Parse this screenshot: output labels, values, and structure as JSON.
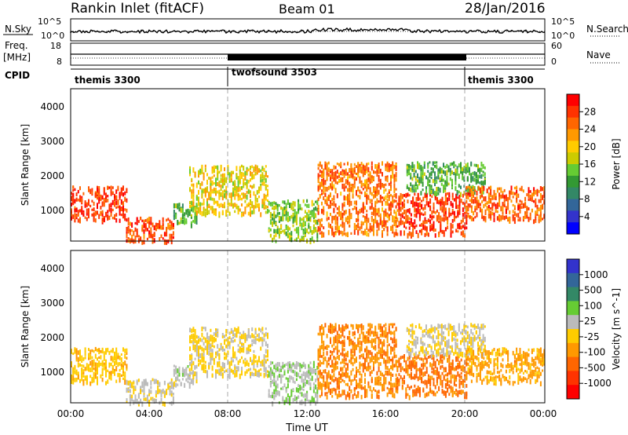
{
  "header": {
    "title": "Rankin Inlet (fitACF)",
    "beam": "Beam 01",
    "date": "28/Jan/2016"
  },
  "top_panels": {
    "nsky_label": "N.Sky",
    "nsearch_label": "N.Search",
    "nsky_ticks": [
      "10^5",
      "10^0"
    ],
    "nsearch_ticks": [
      "10^5",
      "10^0"
    ],
    "freq_label_line1": "Freq.",
    "freq_label_line2": "[MHz]",
    "freq_ticks": [
      "18",
      "8"
    ],
    "nave_label": "Nave",
    "nave_ticks": [
      "60",
      "0"
    ],
    "cpid_label": "CPID",
    "cpid_segments": [
      {
        "label": "themis 3300",
        "start_h": 0,
        "end_h": 8
      },
      {
        "label": "twofsound 3503",
        "start_h": 8,
        "end_h": 20
      },
      {
        "label": "themis 3300",
        "start_h": 20,
        "end_h": 24
      }
    ]
  },
  "axes": {
    "ylabel": "Slant Range [km]",
    "xlabel": "Time UT",
    "xticks": [
      "00:00",
      "04:00",
      "08:00",
      "12:00",
      "16:00",
      "20:00",
      "00:00"
    ],
    "yticks": [
      "4000",
      "3000",
      "2000",
      "1000"
    ]
  },
  "colorbars": {
    "power": {
      "label": "Power [dB]",
      "ticks": [
        "28",
        "24",
        "20",
        "16",
        "12",
        "8",
        "4"
      ],
      "colors": [
        "#ff0000",
        "#ff3300",
        "#ff6600",
        "#ff9900",
        "#ffcc00",
        "#cccc00",
        "#66cc33",
        "#339933",
        "#338866",
        "#336699",
        "#3333cc",
        "#0000ff"
      ]
    },
    "velocity": {
      "label": "Velocity [m s^-1]",
      "ticks": [
        "1000",
        "500",
        "100",
        "25",
        "-25",
        "-100",
        "-500",
        "-1000"
      ],
      "colors": [
        "#3333cc",
        "#336699",
        "#338866",
        "#66cc33",
        "#bbbbbb",
        "#ffcc00",
        "#ff9900",
        "#ff6600",
        "#ff3300",
        "#ff0000"
      ]
    }
  },
  "chart_data": [
    {
      "type": "heatmap",
      "name": "Power [dB]",
      "xlabel": "Time UT",
      "ylabel": "Slant Range [km]",
      "xlim_hours": [
        0,
        24
      ],
      "ylim_km": [
        180,
        4600
      ],
      "clim": [
        0,
        30
      ],
      "regions": [
        {
          "t_start": 0.0,
          "t_end": 2.8,
          "r_low": 800,
          "r_high": 1800,
          "value": 27
        },
        {
          "t_start": 2.8,
          "t_end": 5.2,
          "r_low": 200,
          "r_high": 900,
          "value": 26
        },
        {
          "t_start": 5.2,
          "t_end": 6.4,
          "r_low": 700,
          "r_high": 1300,
          "value": 12
        },
        {
          "t_start": 6.0,
          "t_end": 10.0,
          "r_low": 1000,
          "r_high": 2400,
          "value": 18
        },
        {
          "t_start": 10.0,
          "t_end": 12.5,
          "r_low": 200,
          "r_high": 1400,
          "value": 14
        },
        {
          "t_start": 12.5,
          "t_end": 16.5,
          "r_low": 400,
          "r_high": 2500,
          "value": 24
        },
        {
          "t_start": 16.5,
          "t_end": 20.0,
          "r_low": 400,
          "r_high": 1600,
          "value": 27
        },
        {
          "t_start": 17.0,
          "t_end": 21.0,
          "r_low": 1600,
          "r_high": 2500,
          "value": 12
        },
        {
          "t_start": 20.0,
          "t_end": 24.0,
          "r_low": 800,
          "r_high": 1800,
          "value": 25
        }
      ]
    },
    {
      "type": "heatmap",
      "name": "Velocity [m s^-1]",
      "xlabel": "Time UT",
      "ylabel": "Slant Range [km]",
      "xlim_hours": [
        0,
        24
      ],
      "ylim_km": [
        180,
        4600
      ],
      "clim": [
        -1000,
        1000
      ],
      "regions": [
        {
          "t_start": 0.0,
          "t_end": 2.8,
          "r_low": 800,
          "r_high": 1800,
          "value": -150
        },
        {
          "t_start": 2.8,
          "t_end": 5.2,
          "r_low": 200,
          "r_high": 900,
          "value": 50
        },
        {
          "t_start": 5.2,
          "t_end": 6.4,
          "r_low": 700,
          "r_high": 1300,
          "value": 100
        },
        {
          "t_start": 6.0,
          "t_end": 10.0,
          "r_low": 1000,
          "r_high": 2400,
          "value": -30
        },
        {
          "t_start": 10.0,
          "t_end": 12.5,
          "r_low": 200,
          "r_high": 1400,
          "value": 200
        },
        {
          "t_start": 12.5,
          "t_end": 16.5,
          "r_low": 400,
          "r_high": 2500,
          "value": -400
        },
        {
          "t_start": 16.5,
          "t_end": 20.0,
          "r_low": 400,
          "r_high": 1600,
          "value": -500
        },
        {
          "t_start": 17.0,
          "t_end": 21.0,
          "r_low": 1600,
          "r_high": 2500,
          "value": 0
        },
        {
          "t_start": 20.0,
          "t_end": 24.0,
          "r_low": 800,
          "r_high": 1800,
          "value": -300
        }
      ]
    }
  ]
}
